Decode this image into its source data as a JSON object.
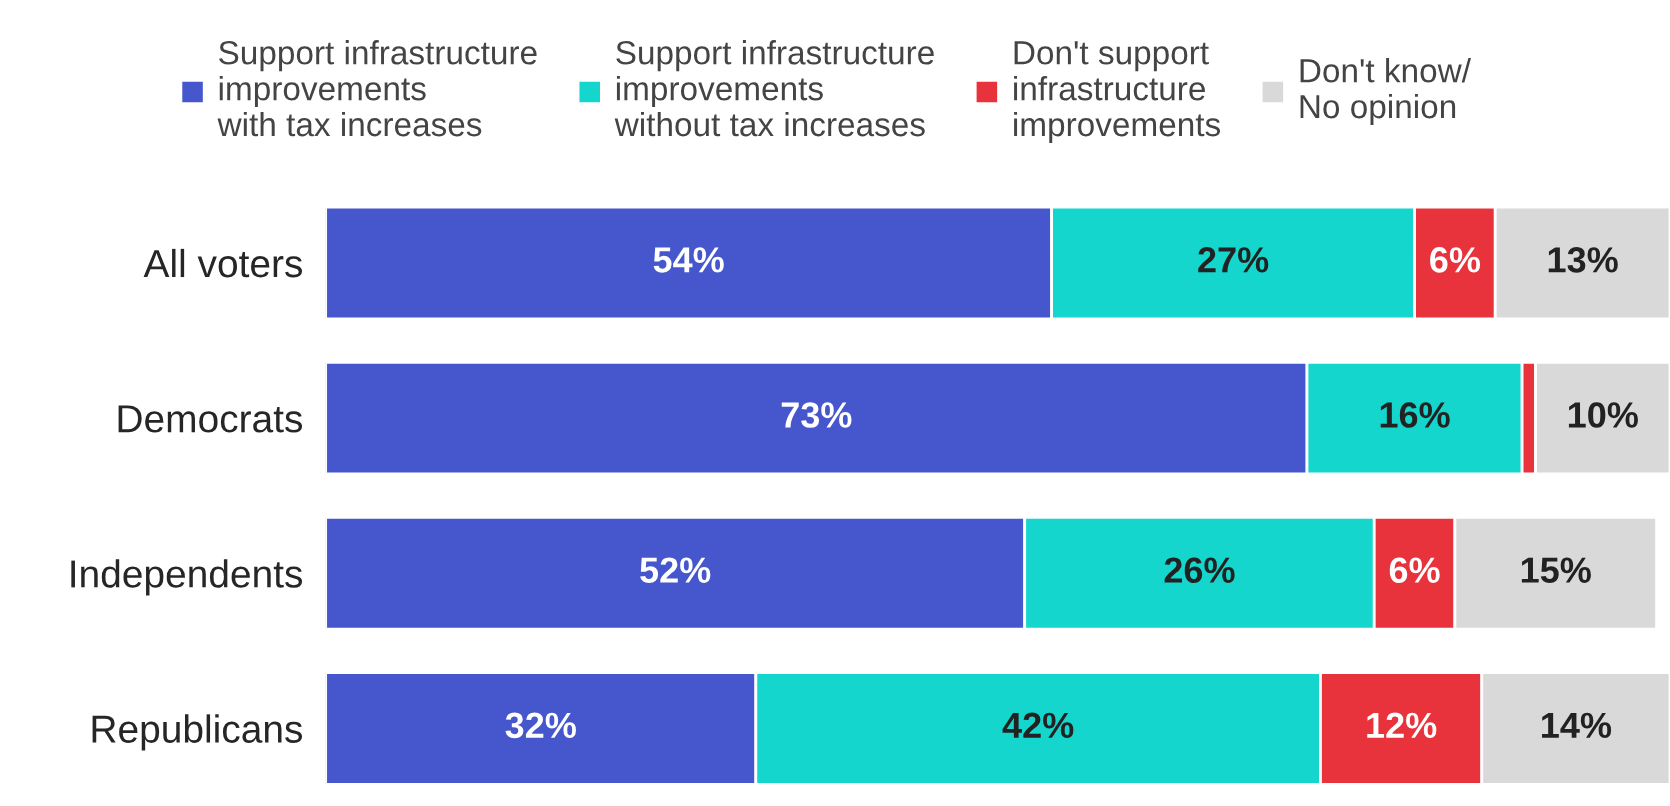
{
  "chart_data": {
    "type": "bar",
    "orientation": "horizontal",
    "stacked": true,
    "legend": "top",
    "categories": [
      "All voters",
      "Democrats",
      "Independents",
      "Republicans"
    ],
    "series": [
      {
        "name": "Support infrastructure\nimprovements\nwith tax increases",
        "color": "#4657ce",
        "values": [
          54,
          73,
          52,
          32
        ],
        "value_labels": [
          "54%",
          "73%",
          "52%",
          "32%"
        ]
      },
      {
        "name": "Support infrastructure\nimprovements\nwithout tax increases",
        "color": "#14d6cc",
        "values": [
          27,
          16,
          26,
          42
        ],
        "value_labels": [
          "27%",
          "16%",
          "26%",
          "42%"
        ]
      },
      {
        "name": "Don't support\ninfrastructure\nimprovements",
        "color": "#e8323c",
        "values": [
          6,
          1,
          6,
          12
        ],
        "value_labels": [
          "6%",
          null,
          "6%",
          "12%"
        ]
      },
      {
        "name": "Don't know/\nNo opinion",
        "color": "#d9d9d9",
        "values": [
          13,
          10,
          15,
          14
        ],
        "value_labels": [
          "13%",
          "10%",
          "15%",
          "14%"
        ]
      }
    ]
  }
}
